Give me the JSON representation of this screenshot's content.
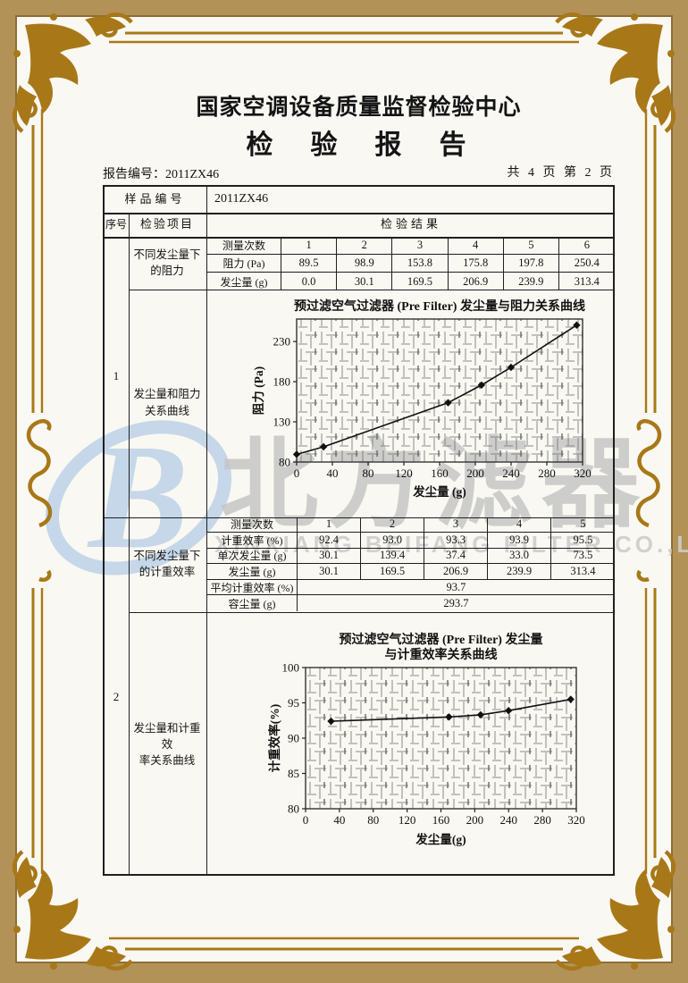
{
  "colors": {
    "paper": "#faf8f2",
    "border_band": "#b29257",
    "frame_gold": "#a87818",
    "table_line": "#1f1f1f",
    "ink": "#141414",
    "watermark_gray": "#c6c6c6",
    "watermark_blue": "#c5d7e8"
  },
  "header": {
    "org_name": "国家空调设备质量监督检验中心",
    "doc_title": "检　验　报　告",
    "report_no": "报告编号：2011ZX46",
    "page_info": "共 4 页 第 2 页"
  },
  "watermark": {
    "logo_letter": "B",
    "cn_text": "北方滤器",
    "en_text": "XINXIANG BEIFANG FILTER CO.,LTD."
  },
  "table": {
    "sample_label": "样品编号",
    "sample_value": "2011ZX46",
    "seq_header": "序号",
    "item_header": "检验项目",
    "result_header": "检验结果",
    "sections": [
      {
        "seq": "1",
        "sub_item_lines": [
          "不同发尘量下",
          "的阻力"
        ],
        "item_lines": [
          "发尘量和阻力",
          "关系曲线"
        ]
      },
      {
        "seq": "2",
        "sub_item_lines": [
          "不同发尘量下",
          "的计重效率"
        ],
        "item_lines": [
          "发尘量和计重效",
          "率关系曲线"
        ]
      }
    ],
    "measure1": {
      "header": [
        "测量次数",
        "1",
        "2",
        "3",
        "4",
        "5",
        "6"
      ],
      "rows": [
        [
          "阻力 (Pa)",
          "89.5",
          "98.9",
          "153.8",
          "175.8",
          "197.8",
          "250.4"
        ],
        [
          "发尘量 (g)",
          "0.0",
          "30.1",
          "169.5",
          "206.9",
          "239.9",
          "313.4"
        ]
      ]
    },
    "measure2": {
      "header": [
        "测量次数",
        "1",
        "2",
        "3",
        "4",
        "5"
      ],
      "rows": [
        [
          "计重效率 (%)",
          "92.4",
          "93.0",
          "93.3",
          "93.9",
          "95.5"
        ],
        [
          "单次发尘量 (g)",
          "30.1",
          "139.4",
          "37.4",
          "33.0",
          "73.5"
        ],
        [
          "发尘量 (g)",
          "30.1",
          "169.5",
          "206.9",
          "239.9",
          "313.4"
        ]
      ],
      "span_rows": [
        [
          "平均计重效率 (%)",
          "93.7"
        ],
        [
          "容尘量 (g)",
          "293.7"
        ]
      ]
    }
  },
  "chart_data": [
    {
      "type": "line",
      "title": "预过滤空气过滤器 (Pre Filter) 发尘量与阻力关系曲线",
      "xlabel": "发尘量 (g)",
      "ylabel": "阻力 (Pa)",
      "x": [
        0,
        30.1,
        169.5,
        206.9,
        239.9,
        313.4
      ],
      "y": [
        89.5,
        98.9,
        153.8,
        175.8,
        197.8,
        250.4
      ],
      "xlim": [
        0,
        320
      ],
      "ylim": [
        80,
        258
      ],
      "xticks": [
        0,
        40,
        80,
        120,
        160,
        200,
        240,
        280,
        320
      ],
      "yticks": [
        80,
        130,
        180,
        230
      ],
      "marker": "diamond",
      "grid": "dense-hatch",
      "legend": false
    },
    {
      "type": "line",
      "title_lines": [
        "预过滤空气过滤器 (Pre Filter) 发尘量",
        "与计重效率关系曲线"
      ],
      "xlabel": "发尘量(g)",
      "ylabel": "计重效率(%)",
      "x": [
        30.1,
        169.5,
        206.9,
        239.9,
        313.4
      ],
      "y": [
        92.4,
        93.0,
        93.3,
        93.9,
        95.5
      ],
      "xlim": [
        0,
        320
      ],
      "ylim": [
        80,
        100
      ],
      "xticks": [
        0,
        40,
        80,
        120,
        160,
        200,
        240,
        280,
        320
      ],
      "yticks": [
        80,
        85,
        90,
        95,
        100
      ],
      "marker": "diamond",
      "grid": "dense-hatch",
      "legend": false
    }
  ]
}
